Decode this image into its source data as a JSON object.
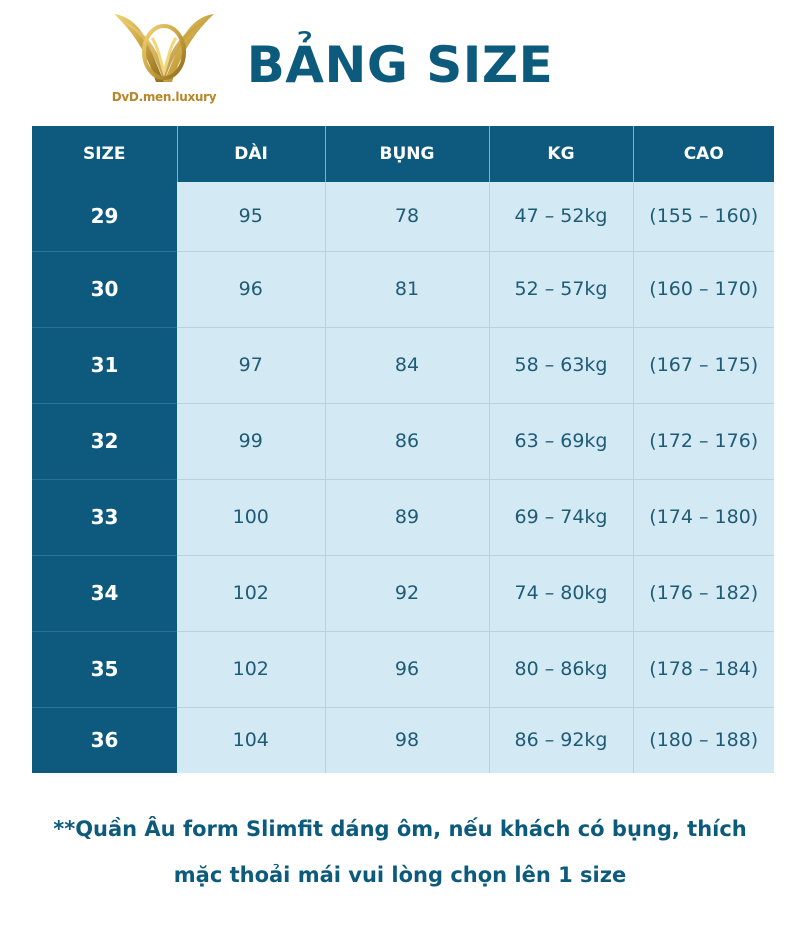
{
  "brand": {
    "name": "DvD.men.luxury",
    "logo_icon": "gold-v-emblem-icon",
    "gold": "#c9a240"
  },
  "title": "BẢNG SIZE",
  "colors": {
    "header_bg": "#0e5a7e",
    "cell_bg": "#d3e9f3",
    "text": "#0c5a7c"
  },
  "table": {
    "headers": [
      "SIZE",
      "DÀI",
      "BỤNG",
      "KG",
      "CAO"
    ],
    "rows": [
      [
        "29",
        "95",
        "78",
        "47 – 52kg",
        "(155 – 160)"
      ],
      [
        "30",
        "96",
        "81",
        "52 – 57kg",
        "(160 – 170)"
      ],
      [
        "31",
        "97",
        "84",
        "58 – 63kg",
        "(167 – 175)"
      ],
      [
        "32",
        "99",
        "86",
        "63 – 69kg",
        "(172 – 176)"
      ],
      [
        "33",
        "100",
        "89",
        "69 – 74kg",
        "(174 – 180)"
      ],
      [
        "34",
        "102",
        "92",
        "74 – 80kg",
        "(176 – 182)"
      ],
      [
        "35",
        "102",
        "96",
        "80 – 86kg",
        "(178 – 184)"
      ],
      [
        "36",
        "104",
        "98",
        "86 – 92kg",
        "(180 – 188)"
      ]
    ]
  },
  "note": {
    "line1": "**Quần Âu form Slimfit dáng ôm, nếu khách có bụng, thích",
    "line2": "mặc thoải mái vui lòng chọn lên 1 size"
  }
}
